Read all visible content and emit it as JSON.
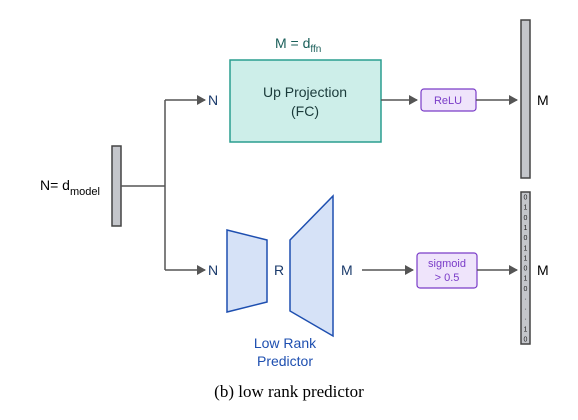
{
  "top": {
    "m_label_prefix": "M = d",
    "m_label_sub": "ffn",
    "n_label": "N",
    "fc_line1": "Up Projection",
    "fc_line2": "(FC)",
    "relu": "ReLU",
    "out_label": "M"
  },
  "left": {
    "n_prefix": "N= d",
    "n_sub": "model"
  },
  "bottom": {
    "n_label": "N",
    "r_label": "R",
    "m_label": "M",
    "sigmoid_line1": "sigmoid",
    "sigmoid_line2": "> 0.5",
    "out_label": "M",
    "predictor_line1": "Low Rank",
    "predictor_line2": "Predictor",
    "mask_cells": [
      "0",
      "1",
      "0",
      "1",
      "0",
      "1",
      "1",
      "0",
      "1",
      "0",
      "·",
      "·",
      "·",
      "1",
      "0"
    ]
  },
  "caption": "(b) low rank predictor",
  "colors": {
    "fc_fill": "#cdeee9",
    "fc_stroke": "#2a9d8f",
    "purple": "#7a3cc8",
    "purple_fill": "#efe4fb",
    "blue": "#1e4fb0",
    "blue_fill": "#d6e2f7",
    "bar_fill": "#c4c6cb",
    "text": "#000000"
  }
}
